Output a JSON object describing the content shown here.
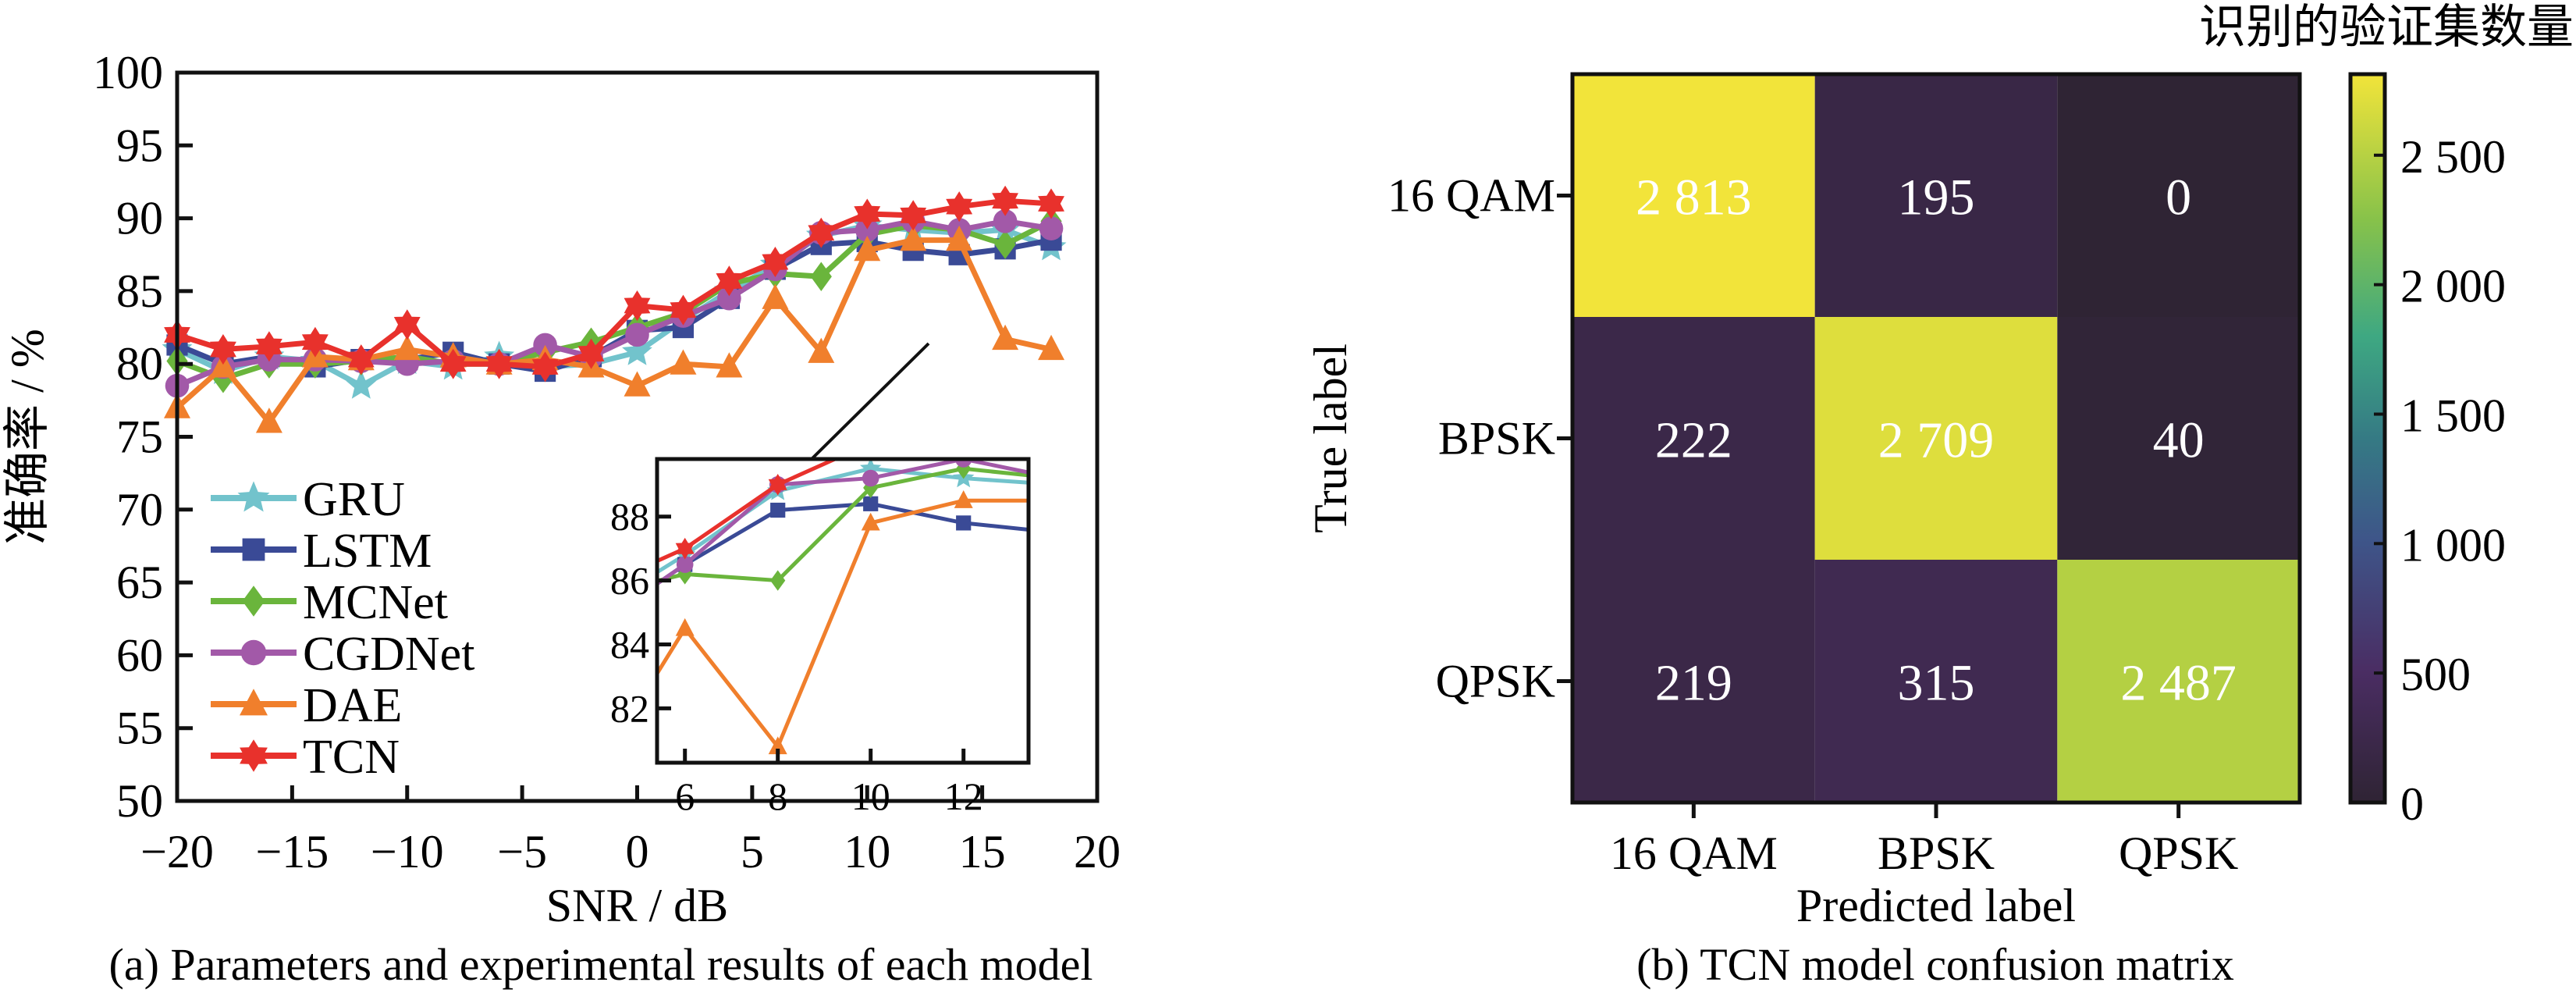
{
  "chart_data": [
    {
      "type": "line",
      "caption": "(a) Parameters and experimental results of each model",
      "xlabel": "SNR / dB",
      "ylabel": "准确率 / %",
      "xlim": [
        -20,
        20
      ],
      "ylim": [
        50,
        100
      ],
      "xticks": [
        -20,
        -15,
        -10,
        -5,
        0,
        5,
        10,
        15,
        20
      ],
      "xtick_labels": [
        "−20",
        "−15",
        "−10",
        "−5",
        "0",
        "5",
        "10",
        "15",
        "20"
      ],
      "yticks": [
        50,
        55,
        60,
        65,
        70,
        75,
        80,
        85,
        90,
        95,
        100
      ],
      "legend_position": "lower-left",
      "x": [
        -20,
        -18,
        -16,
        -14,
        -12,
        -10,
        -8,
        -6,
        -4,
        -2,
        0,
        2,
        4,
        6,
        8,
        10,
        12,
        14,
        16,
        18
      ],
      "series": [
        {
          "name": "GRU",
          "color": "#72c3cc",
          "marker": "star5",
          "values": [
            81,
            79.5,
            80.5,
            80.2,
            78.5,
            80.2,
            79.8,
            80.5,
            79.8,
            80,
            80.8,
            83,
            85,
            86.8,
            88.8,
            89.5,
            89.2,
            89,
            89.2,
            88
          ]
        },
        {
          "name": "LSTM",
          "color": "#3a4a96",
          "marker": "square",
          "values": [
            81.3,
            80,
            80.5,
            79.8,
            80.3,
            80.3,
            80.8,
            80,
            79.5,
            80.5,
            82.3,
            82.5,
            84.5,
            86.5,
            88.2,
            88.4,
            87.8,
            87.5,
            87.9,
            88.5
          ]
        },
        {
          "name": "MCNet",
          "color": "#6ab53c",
          "marker": "diamond",
          "values": [
            80.2,
            79,
            80,
            80,
            80.2,
            80.5,
            80,
            80,
            80.8,
            81.5,
            82.5,
            83.5,
            85.5,
            86.2,
            86,
            88.9,
            89.5,
            89.2,
            88.2,
            89.8
          ]
        },
        {
          "name": "CGDNet",
          "color": "#a259a8",
          "marker": "circle",
          "values": [
            78.5,
            79.8,
            80.3,
            80.3,
            80.2,
            80,
            80.2,
            80,
            81.3,
            80.5,
            82,
            83.3,
            84.5,
            86.5,
            89,
            89.2,
            89.8,
            89.2,
            89.8,
            89.3
          ]
        },
        {
          "name": "DAE",
          "color": "#f07f2c",
          "marker": "triangle",
          "values": [
            77,
            79.8,
            76,
            80.5,
            80.3,
            81,
            80.5,
            80,
            80.3,
            79.8,
            78.5,
            80,
            79.8,
            84.5,
            80.8,
            87.8,
            88.5,
            88.5,
            81.7,
            81
          ]
        },
        {
          "name": "TCN",
          "color": "#e8312c",
          "marker": "star6",
          "values": [
            82,
            81,
            81.2,
            81.5,
            80.3,
            82.7,
            80,
            80,
            79.8,
            80.7,
            84,
            83.7,
            85.7,
            87,
            89,
            90.3,
            90.2,
            90.8,
            91.2,
            91
          ]
        }
      ],
      "inset": {
        "xlim": [
          5.4,
          13.4
        ],
        "ylim": [
          80.3,
          89.8
        ],
        "xticks": [
          6,
          8,
          10,
          12
        ],
        "yticks": [
          82,
          84,
          86,
          88
        ]
      }
    },
    {
      "type": "heatmap",
      "caption": "(b) TCN model confusion matrix",
      "xlabel": "Predicted label",
      "ylabel": "True label",
      "row_labels": [
        "16 QAM",
        "BPSK",
        "QPSK"
      ],
      "col_labels": [
        "16 QAM",
        "BPSK",
        "QPSK"
      ],
      "values": [
        [
          2813,
          195,
          0
        ],
        [
          222,
          2709,
          40
        ],
        [
          219,
          315,
          2487
        ]
      ],
      "value_labels": [
        [
          "2 813",
          "195",
          "0"
        ],
        [
          "222",
          "2 709",
          "40"
        ],
        [
          "219",
          "315",
          "2 487"
        ]
      ],
      "colorbar": {
        "title": "识别的验证集数量",
        "range": [
          0,
          2813
        ],
        "ticks": [
          0,
          500,
          1000,
          1500,
          2000,
          2500
        ],
        "tick_labels": [
          "0",
          "500",
          "1 000",
          "1 500",
          "2 000",
          "2 500"
        ],
        "colormap": "viridis-dark"
      }
    }
  ]
}
